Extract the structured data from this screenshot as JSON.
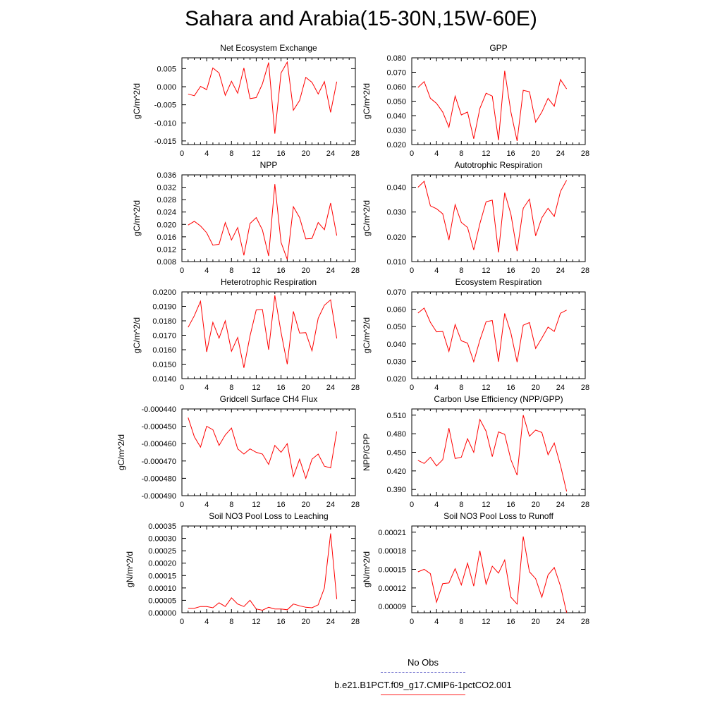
{
  "title": "Sahara and Arabia(15-30N,15W-60E)",
  "legend": {
    "entries": [
      {
        "label": "No Obs",
        "color": "#6060c8",
        "style": "dashed"
      },
      {
        "label": "b.e21.B1PCT.f09_g17.CMIP6-1pctCO2.001",
        "color": "#ff2020",
        "style": "solid"
      }
    ]
  },
  "chart_data": [
    {
      "type": "line",
      "title": "Net Ecosystem Exchange",
      "ylabel": "gC/m^2/d",
      "xlim": [
        0,
        28
      ],
      "ylim": [
        -0.016,
        0.008
      ],
      "xticks": [
        "0",
        "4",
        "8",
        "12",
        "16",
        "20",
        "24",
        "28"
      ],
      "yticks": [
        {
          "v": -0.015,
          "label": "-0.015"
        },
        {
          "v": -0.01,
          "label": "-0.010"
        },
        {
          "v": -0.005,
          "label": "-0.005"
        },
        {
          "v": 0,
          "label": "0.000"
        },
        {
          "v": 0.005,
          "label": "0.005"
        }
      ],
      "series": [
        {
          "color": "#ff0000",
          "x": [
            1,
            2,
            3,
            4,
            5,
            6,
            7,
            8,
            9,
            10,
            11,
            12,
            13,
            14,
            15,
            16,
            17,
            18,
            19,
            20,
            21,
            22,
            23,
            24,
            25
          ],
          "y": [
            -0.002,
            -0.0025,
            0.0001,
            -0.0008,
            0.0052,
            0.0038,
            -0.0024,
            0.0015,
            -0.0018,
            0.0052,
            -0.0033,
            -0.003,
            0.0008,
            0.0067,
            -0.013,
            0.0038,
            0.0068,
            -0.0065,
            -0.0038,
            0.0026,
            0.0012,
            -0.002,
            0.0014,
            -0.0071,
            0.0014
          ]
        }
      ]
    },
    {
      "type": "line",
      "title": "GPP",
      "ylabel": "gC/m^2/d",
      "xlim": [
        0,
        28
      ],
      "ylim": [
        0.02,
        0.08
      ],
      "xticks": [
        "0",
        "4",
        "8",
        "12",
        "16",
        "20",
        "24",
        "28"
      ],
      "yticks": [
        {
          "v": 0.02,
          "label": "0.020"
        },
        {
          "v": 0.03,
          "label": "0.030"
        },
        {
          "v": 0.04,
          "label": "0.040"
        },
        {
          "v": 0.05,
          "label": "0.050"
        },
        {
          "v": 0.06,
          "label": "0.060"
        },
        {
          "v": 0.07,
          "label": "0.070"
        },
        {
          "v": 0.08,
          "label": "0.080"
        }
      ],
      "series": [
        {
          "color": "#ff0000",
          "x": [
            1,
            2,
            3,
            4,
            5,
            6,
            7,
            8,
            9,
            10,
            11,
            12,
            13,
            14,
            15,
            16,
            17,
            18,
            19,
            20,
            21,
            22,
            23,
            24,
            25
          ],
          "y": [
            0.0595,
            0.0635,
            0.052,
            0.0485,
            0.0425,
            0.032,
            0.0535,
            0.0405,
            0.0425,
            0.024,
            0.045,
            0.0555,
            0.0535,
            0.023,
            0.071,
            0.0425,
            0.0225,
            0.0575,
            0.0565,
            0.0355,
            0.0425,
            0.052,
            0.0465,
            0.065,
            0.0585
          ]
        }
      ]
    },
    {
      "type": "line",
      "title": "NPP",
      "ylabel": "gC/m^2/d",
      "xlim": [
        0,
        28
      ],
      "ylim": [
        0.008,
        0.036
      ],
      "xticks": [
        "0",
        "4",
        "8",
        "12",
        "16",
        "20",
        "24",
        "28"
      ],
      "yticks": [
        {
          "v": 0.008,
          "label": "0.008"
        },
        {
          "v": 0.012,
          "label": "0.012"
        },
        {
          "v": 0.016,
          "label": "0.016"
        },
        {
          "v": 0.02,
          "label": "0.020"
        },
        {
          "v": 0.024,
          "label": "0.024"
        },
        {
          "v": 0.028,
          "label": "0.028"
        },
        {
          "v": 0.032,
          "label": "0.032"
        },
        {
          "v": 0.036,
          "label": "0.036"
        }
      ],
      "series": [
        {
          "color": "#ff0000",
          "x": [
            1,
            2,
            3,
            4,
            5,
            6,
            7,
            8,
            9,
            10,
            11,
            12,
            13,
            14,
            15,
            16,
            17,
            18,
            19,
            20,
            21,
            22,
            23,
            24,
            25
          ],
          "y": [
            0.0198,
            0.021,
            0.0195,
            0.0173,
            0.0133,
            0.0136,
            0.0206,
            0.015,
            0.019,
            0.01,
            0.0203,
            0.0222,
            0.0182,
            0.0098,
            0.033,
            0.0142,
            0.0087,
            0.0257,
            0.0222,
            0.0153,
            0.0155,
            0.0206,
            0.0183,
            0.0269,
            0.0164
          ]
        }
      ]
    },
    {
      "type": "line",
      "title": "Autotrophic Respiration",
      "ylabel": "gC/m^2/d",
      "xlim": [
        0,
        28
      ],
      "ylim": [
        0.01,
        0.045
      ],
      "xticks": [
        "0",
        "4",
        "8",
        "12",
        "16",
        "20",
        "24",
        "28"
      ],
      "yticks": [
        {
          "v": 0.01,
          "label": "0.010"
        },
        {
          "v": 0.02,
          "label": "0.020"
        },
        {
          "v": 0.03,
          "label": "0.030"
        },
        {
          "v": 0.04,
          "label": "0.040"
        }
      ],
      "series": [
        {
          "color": "#ff0000",
          "x": [
            1,
            2,
            3,
            4,
            5,
            6,
            7,
            8,
            9,
            10,
            11,
            12,
            13,
            14,
            15,
            16,
            17,
            18,
            19,
            20,
            21,
            22,
            23,
            24,
            25
          ],
          "y": [
            0.04,
            0.0424,
            0.0325,
            0.0313,
            0.0293,
            0.0187,
            0.033,
            0.0258,
            0.0238,
            0.0147,
            0.0253,
            0.0341,
            0.0348,
            0.0137,
            0.0378,
            0.0291,
            0.0142,
            0.0315,
            0.0352,
            0.0204,
            0.0277,
            0.0315,
            0.0282,
            0.0383,
            0.0428
          ]
        }
      ]
    },
    {
      "type": "line",
      "title": "Heterotrophic Respiration",
      "ylabel": "gC/m^2/d",
      "xlim": [
        0,
        28
      ],
      "ylim": [
        0.014,
        0.02
      ],
      "xticks": [
        "0",
        "4",
        "8",
        "12",
        "16",
        "20",
        "24",
        "28"
      ],
      "yticks": [
        {
          "v": 0.014,
          "label": "0.0140"
        },
        {
          "v": 0.015,
          "label": "0.0150"
        },
        {
          "v": 0.016,
          "label": "0.0160"
        },
        {
          "v": 0.017,
          "label": "0.0170"
        },
        {
          "v": 0.018,
          "label": "0.0180"
        },
        {
          "v": 0.019,
          "label": "0.0190"
        },
        {
          "v": 0.02,
          "label": "0.0200"
        }
      ],
      "series": [
        {
          "color": "#ff0000",
          "x": [
            1,
            2,
            3,
            4,
            5,
            6,
            7,
            8,
            9,
            10,
            11,
            12,
            13,
            14,
            15,
            16,
            17,
            18,
            19,
            20,
            21,
            22,
            23,
            24,
            25
          ],
          "y": [
            0.01755,
            0.01835,
            0.01935,
            0.01585,
            0.0179,
            0.0168,
            0.018,
            0.0159,
            0.01685,
            0.01475,
            0.01695,
            0.01875,
            0.01878,
            0.016,
            0.01975,
            0.0172,
            0.015,
            0.01865,
            0.01715,
            0.01718,
            0.01592,
            0.01818,
            0.01908,
            0.01945,
            0.01678
          ]
        }
      ]
    },
    {
      "type": "line",
      "title": "Ecosystem Respiration",
      "ylabel": "gC/m^2/d",
      "xlim": [
        0,
        28
      ],
      "ylim": [
        0.02,
        0.07
      ],
      "xticks": [
        "0",
        "4",
        "8",
        "12",
        "16",
        "20",
        "24",
        "28"
      ],
      "yticks": [
        {
          "v": 0.02,
          "label": "0.020"
        },
        {
          "v": 0.03,
          "label": "0.030"
        },
        {
          "v": 0.04,
          "label": "0.040"
        },
        {
          "v": 0.05,
          "label": "0.050"
        },
        {
          "v": 0.06,
          "label": "0.060"
        },
        {
          "v": 0.07,
          "label": "0.070"
        }
      ],
      "series": [
        {
          "color": "#ff0000",
          "x": [
            1,
            2,
            3,
            4,
            5,
            6,
            7,
            8,
            9,
            10,
            11,
            12,
            13,
            14,
            15,
            16,
            17,
            18,
            19,
            20,
            21,
            22,
            23,
            24,
            25
          ],
          "y": [
            0.0578,
            0.0607,
            0.0525,
            0.047,
            0.0472,
            0.0357,
            0.0512,
            0.0418,
            0.0405,
            0.0297,
            0.0422,
            0.0528,
            0.0535,
            0.0297,
            0.0576,
            0.0463,
            0.0295,
            0.0508,
            0.0523,
            0.0374,
            0.0434,
            0.0497,
            0.0472,
            0.0577,
            0.0595
          ]
        }
      ]
    },
    {
      "type": "line",
      "title": "Gridcell Surface CH4 Flux",
      "ylabel": "gC/m^2/d",
      "xlim": [
        0,
        28
      ],
      "ylim": [
        -0.00049,
        -0.00044
      ],
      "xticks": [
        "0",
        "4",
        "8",
        "12",
        "16",
        "20",
        "24",
        "28"
      ],
      "yticks": [
        {
          "v": -0.00049,
          "label": "-0.000490"
        },
        {
          "v": -0.00048,
          "label": "-0.000480"
        },
        {
          "v": -0.00047,
          "label": "-0.000470"
        },
        {
          "v": -0.00046,
          "label": "-0.000460"
        },
        {
          "v": -0.00045,
          "label": "-0.000450"
        },
        {
          "v": -0.00044,
          "label": "-0.000440"
        }
      ],
      "series": [
        {
          "color": "#ff0000",
          "x": [
            1,
            2,
            3,
            4,
            5,
            6,
            7,
            8,
            9,
            10,
            11,
            12,
            13,
            14,
            15,
            16,
            17,
            18,
            19,
            20,
            21,
            22,
            23,
            24,
            25
          ],
          "y": [
            -0.000445,
            -0.000456,
            -0.000462,
            -0.00045,
            -0.000452,
            -0.000461,
            -0.000455,
            -0.000451,
            -0.000463,
            -0.000466,
            -0.000463,
            -0.000465,
            -0.000466,
            -0.000472,
            -0.000461,
            -0.000465,
            -0.00046,
            -0.000479,
            -0.000469,
            -0.00048,
            -0.000469,
            -0.000466,
            -0.000473,
            -0.000474,
            -0.000453
          ]
        }
      ]
    },
    {
      "type": "line",
      "title": "Carbon Use Efficiency (NPP/GPP)",
      "ylabel": "NPP/GPP",
      "xlim": [
        0,
        28
      ],
      "ylim": [
        0.38,
        0.52
      ],
      "xticks": [
        "0",
        "4",
        "8",
        "12",
        "16",
        "20",
        "24",
        "28"
      ],
      "yticks": [
        {
          "v": 0.39,
          "label": "0.390"
        },
        {
          "v": 0.42,
          "label": "0.420"
        },
        {
          "v": 0.45,
          "label": "0.450"
        },
        {
          "v": 0.48,
          "label": "0.480"
        },
        {
          "v": 0.51,
          "label": "0.510"
        }
      ],
      "series": [
        {
          "color": "#ff0000",
          "x": [
            1,
            2,
            3,
            4,
            5,
            6,
            7,
            8,
            9,
            10,
            11,
            12,
            13,
            14,
            15,
            16,
            17,
            18,
            19,
            20,
            21,
            22,
            23,
            24,
            25
          ],
          "y": [
            0.437,
            0.432,
            0.442,
            0.428,
            0.438,
            0.489,
            0.44,
            0.442,
            0.472,
            0.45,
            0.503,
            0.484,
            0.443,
            0.483,
            0.479,
            0.438,
            0.413,
            0.51,
            0.476,
            0.486,
            0.482,
            0.446,
            0.465,
            0.429,
            0.387
          ]
        }
      ]
    },
    {
      "type": "line",
      "title": "Soil NO3 Pool Loss to Leaching",
      "ylabel": "gN/m^2/d",
      "xlim": [
        0,
        28
      ],
      "ylim": [
        0,
        0.00035
      ],
      "xticks": [
        "0",
        "4",
        "8",
        "12",
        "16",
        "20",
        "24",
        "28"
      ],
      "yticks": [
        {
          "v": 0,
          "label": "0.00000"
        },
        {
          "v": 5e-05,
          "label": "0.00005"
        },
        {
          "v": 0.0001,
          "label": "0.00010"
        },
        {
          "v": 0.00015,
          "label": "0.00015"
        },
        {
          "v": 0.0002,
          "label": "0.00020"
        },
        {
          "v": 0.00025,
          "label": "0.00025"
        },
        {
          "v": 0.0003,
          "label": "0.00030"
        },
        {
          "v": 0.00035,
          "label": "0.00035"
        }
      ],
      "series": [
        {
          "color": "#ff0000",
          "x": [
            1,
            2,
            3,
            4,
            5,
            6,
            7,
            8,
            9,
            10,
            11,
            12,
            13,
            14,
            15,
            16,
            17,
            18,
            19,
            20,
            21,
            22,
            23,
            24,
            25
          ],
          "y": [
            1.8e-05,
            1.8e-05,
            2.5e-05,
            2.5e-05,
            2e-05,
            4e-05,
            2.5e-05,
            6e-05,
            3.5e-05,
            2.5e-05,
            5e-05,
            1.5e-05,
            1e-05,
            2.2e-05,
            1.5e-05,
            1.5e-05,
            1.2e-05,
            3.5e-05,
            2.8e-05,
            2.2e-05,
            2e-05,
            3.2e-05,
            0.0001,
            0.00032,
            5.5e-05
          ]
        }
      ]
    },
    {
      "type": "line",
      "title": "Soil NO3 Pool Loss to Runoff",
      "ylabel": "gN/m^2/d",
      "xlim": [
        0,
        28
      ],
      "ylim": [
        8e-05,
        0.00022
      ],
      "xticks": [
        "0",
        "4",
        "8",
        "12",
        "16",
        "20",
        "24",
        "28"
      ],
      "yticks": [
        {
          "v": 9e-05,
          "label": "0.00009"
        },
        {
          "v": 0.00012,
          "label": "0.00012"
        },
        {
          "v": 0.00015,
          "label": "0.00015"
        },
        {
          "v": 0.00018,
          "label": "0.00018"
        },
        {
          "v": 0.00021,
          "label": "0.00021"
        }
      ],
      "series": [
        {
          "color": "#ff0000",
          "x": [
            1,
            2,
            3,
            4,
            5,
            6,
            7,
            8,
            9,
            10,
            11,
            12,
            13,
            14,
            15,
            16,
            17,
            18,
            19,
            20,
            21,
            22,
            23,
            24,
            25
          ],
          "y": [
            0.000146,
            0.00015,
            0.000143,
            9.7e-05,
            0.000127,
            0.000128,
            0.000151,
            0.000125,
            0.00016,
            0.000123,
            0.00018,
            0.000126,
            0.000155,
            0.000144,
            0.000165,
            0.000105,
            9.4e-05,
            0.000203,
            0.000146,
            0.000135,
            0.000105,
            0.000141,
            0.000153,
            0.000123,
            8e-05
          ]
        }
      ]
    }
  ]
}
